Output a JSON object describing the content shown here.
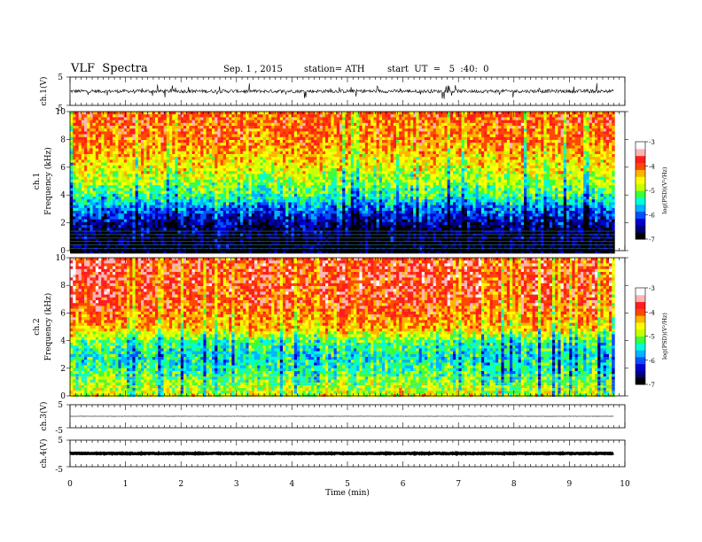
{
  "header": {
    "title": "VLF  Spectra",
    "date": "Sep. 1 , 2015",
    "station": "station= ATH",
    "start": "start  UT  =   5  :40:  0"
  },
  "colors": {
    "scale": [
      "#000000",
      "#00007a",
      "#0000d0",
      "#0050ff",
      "#00b4ff",
      "#00ffd8",
      "#3cff3c",
      "#c8ff00",
      "#ffff00",
      "#ffb400",
      "#ff4800",
      "#ff1e1e",
      "#ffb4b4",
      "#ffffff"
    ]
  },
  "chart_data": [
    {
      "type": "line",
      "panel": "ch1-waveform",
      "ylabel": "ch.1(V)",
      "yticks": [
        "5",
        "-5"
      ],
      "ylim": [
        -5,
        5
      ],
      "xlim": [
        0,
        10
      ],
      "data_end": 9.8,
      "baseline": 0,
      "noise_amplitude": 0.6,
      "spikes_amplitude": 2.5,
      "grid": false
    },
    {
      "type": "heatmap",
      "panel": "ch1-spectrogram",
      "ylabel_line1": "ch.1",
      "ylabel_line2": "Frequency  (kHz)",
      "yticks": [
        "0",
        "2",
        "4",
        "6",
        "8",
        "10"
      ],
      "ylim": [
        0,
        10
      ],
      "xlim": [
        0,
        10
      ],
      "data_end": 9.8,
      "colorbar": {
        "label": "log(PSD)(V²/Hz)",
        "ticks": [
          "-3",
          "-4",
          "-5",
          "-6",
          "-7"
        ],
        "range": [
          -7,
          -3
        ]
      },
      "profile_khz": [
        0,
        1,
        2,
        3,
        4,
        5,
        6,
        7,
        8,
        9,
        10
      ],
      "profile_logpsd": [
        -7.0,
        -6.9,
        -6.6,
        -6.0,
        -5.3,
        -4.9,
        -4.6,
        -4.3,
        -4.0,
        -3.9,
        -3.9
      ],
      "grid": false
    },
    {
      "type": "heatmap",
      "panel": "ch2-spectrogram",
      "ylabel_line1": "ch.2",
      "ylabel_line2": "Frequency  (kHz)",
      "yticks": [
        "0",
        "2",
        "4",
        "6",
        "8",
        "10"
      ],
      "ylim": [
        0,
        10
      ],
      "xlim": [
        0,
        10
      ],
      "data_end": 9.8,
      "colorbar": {
        "label": "log(PSD)(V²/Hz)",
        "ticks": [
          "-3",
          "-4",
          "-5",
          "-6",
          "-7"
        ],
        "range": [
          -7,
          -3
        ]
      },
      "profile_khz": [
        0,
        1,
        2,
        3,
        4,
        5,
        6,
        7,
        8,
        9,
        10
      ],
      "profile_logpsd": [
        -4.6,
        -5.0,
        -5.3,
        -5.5,
        -5.2,
        -4.3,
        -4.0,
        -3.8,
        -3.7,
        -3.7,
        -3.7
      ],
      "grid": false
    },
    {
      "type": "line",
      "panel": "ch3-waveform",
      "ylabel": "ch.3(V)",
      "yticks": [
        "5",
        "-5"
      ],
      "ylim": [
        -5,
        5
      ],
      "xlim": [
        0,
        10
      ],
      "data_end": 9.8,
      "baseline": 0,
      "noise_amplitude": 0.05,
      "grid": false
    },
    {
      "type": "line",
      "panel": "ch4-waveform",
      "ylabel": "ch.4(V)",
      "yticks": [
        "5",
        "-5"
      ],
      "ylim": [
        -5,
        5
      ],
      "xlim": [
        0,
        10
      ],
      "data_end": 9.8,
      "baseline": 0,
      "noise_amplitude": 0.15,
      "xlabel": "Time  (min)",
      "xticks": [
        "0",
        "1",
        "2",
        "3",
        "4",
        "5",
        "6",
        "7",
        "8",
        "9",
        "10"
      ],
      "grid": false
    }
  ]
}
